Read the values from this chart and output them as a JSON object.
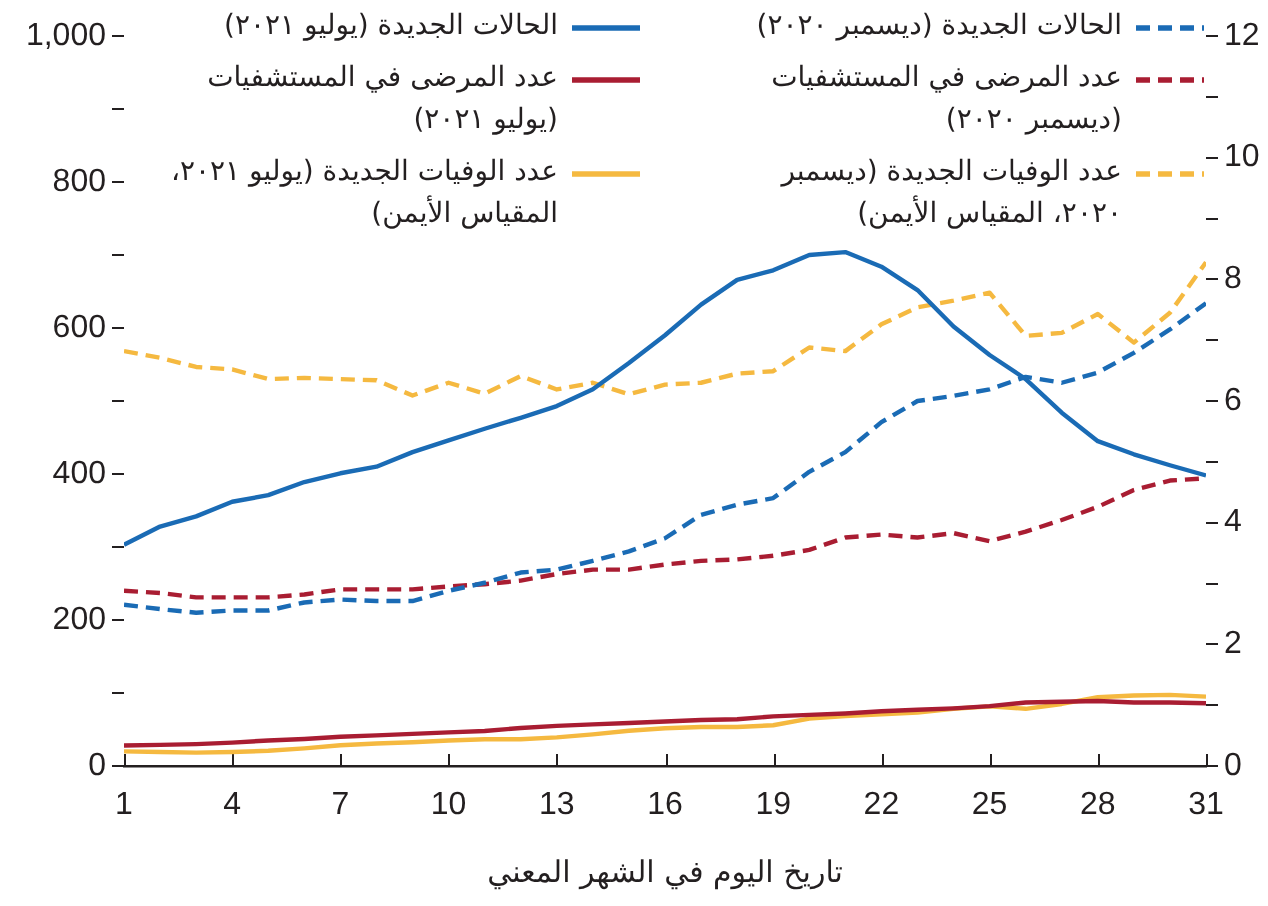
{
  "chart_data": {
    "type": "line",
    "xlabel": "تاريخ اليوم في الشهر المعني",
    "x": [
      1,
      2,
      3,
      4,
      5,
      6,
      7,
      8,
      9,
      10,
      11,
      12,
      13,
      14,
      15,
      16,
      17,
      18,
      19,
      20,
      21,
      22,
      23,
      24,
      25,
      26,
      27,
      28,
      29,
      30,
      31
    ],
    "xlim": [
      1,
      31
    ],
    "xticks": [
      1,
      4,
      7,
      10,
      13,
      16,
      19,
      22,
      25,
      28,
      31
    ],
    "ylim": [
      0,
      1000
    ],
    "yticks": [
      0,
      {
        "value": 100,
        "label": null
      },
      200,
      {
        "value": 300,
        "label": null
      },
      400,
      {
        "value": 500,
        "label": null
      },
      600,
      {
        "value": 700,
        "label": null
      },
      800,
      {
        "value": 900,
        "label": null
      },
      {
        "value": 1000,
        "label": "1,000"
      }
    ],
    "y2lim": [
      0,
      12
    ],
    "y2ticks": [
      0,
      {
        "value": 1,
        "label": null
      },
      2,
      {
        "value": 3,
        "label": null
      },
      4,
      {
        "value": 5,
        "label": null
      },
      6,
      {
        "value": 7,
        "label": null
      },
      8,
      {
        "value": 9,
        "label": null
      },
      10,
      {
        "value": 11,
        "label": null
      },
      12
    ],
    "legend": "top",
    "marker": "none",
    "series": [
      {
        "name": "الحالات الجديدة (ديسمبر ٢٠٢٠)",
        "color": "#1a6bb5",
        "line_style": "dashed",
        "values": [
          221,
          215,
          210,
          213,
          213,
          224,
          228,
          226,
          226,
          240,
          251,
          265,
          269,
          281,
          294,
          312,
          344,
          358,
          367,
          403,
          430,
          471,
          500,
          507,
          516,
          533,
          525,
          539,
          566,
          598,
          634
        ]
      },
      {
        "name": "الحالات الجديدة (يوليو ٢٠٢١)",
        "color": "#1a6bb5",
        "line_style": "solid",
        "values": [
          303,
          328,
          342,
          362,
          371,
          389,
          401,
          410,
          430,
          446,
          462,
          477,
          493,
          516,
          552,
          590,
          632,
          666,
          679,
          700,
          704,
          684,
          652,
          602,
          563,
          530,
          484,
          445,
          427,
          412,
          398
        ]
      },
      {
        "name": "عدد المرضى في المستشفيات (ديسمبر ٢٠٢٠)",
        "color": "#a91d32",
        "line_style": "dashed",
        "values": [
          240,
          237,
          231,
          231,
          231,
          235,
          242,
          242,
          242,
          246,
          249,
          254,
          263,
          269,
          269,
          276,
          281,
          283,
          288,
          296,
          313,
          317,
          313,
          319,
          308,
          321,
          337,
          355,
          378,
          391,
          394
        ]
      },
      {
        "name": "عدد المرضى في المستشفيات (يوليو ٢٠٢١)",
        "color": "#a91d32",
        "line_style": "solid",
        "values": [
          28,
          29,
          30,
          32,
          35,
          37,
          40,
          42,
          44,
          46,
          48,
          52,
          55,
          57,
          59,
          61,
          63,
          64,
          68,
          70,
          72,
          75,
          77,
          79,
          82,
          87,
          88,
          89,
          87,
          87,
          86
        ]
      },
      {
        "name": "عدد الوفيات الجديدة (ديسمبر ٢٠٢٠، المقياس الأيمن)",
        "color": "#f5b940",
        "line_style": "dashed",
        "axis": "y2",
        "values": [
          6.82,
          6.71,
          6.56,
          6.52,
          6.36,
          6.38,
          6.36,
          6.34,
          6.09,
          6.3,
          6.12,
          6.41,
          6.19,
          6.3,
          6.11,
          6.27,
          6.3,
          6.45,
          6.49,
          6.88,
          6.82,
          7.26,
          7.54,
          7.65,
          7.78,
          7.07,
          7.12,
          7.43,
          6.96,
          7.45,
          8.28
        ]
      },
      {
        "name": "عدد الوفيات الجديدة (يوليو ٢٠٢١، المقياس الأيمن)",
        "color": "#f5b940",
        "line_style": "solid",
        "axis": "y2",
        "values": [
          0.24,
          0.23,
          0.22,
          0.23,
          0.25,
          0.29,
          0.34,
          0.37,
          0.39,
          0.42,
          0.44,
          0.44,
          0.47,
          0.52,
          0.58,
          0.62,
          0.64,
          0.64,
          0.67,
          0.78,
          0.82,
          0.85,
          0.88,
          0.94,
          0.98,
          0.94,
          1.02,
          1.13,
          1.16,
          1.17,
          1.14
        ]
      }
    ]
  }
}
